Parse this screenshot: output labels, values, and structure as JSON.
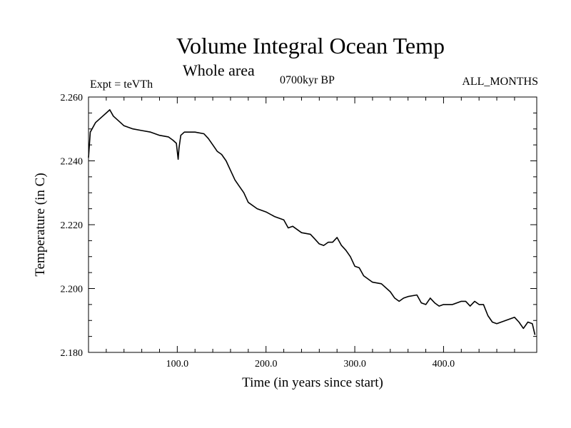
{
  "chart_data": {
    "type": "line",
    "title": "Volume Integral Ocean Temp",
    "subtitle": "Whole area",
    "annotations": {
      "left": "Expt = teVTh",
      "center": "0700kyr BP",
      "right": "ALL_MONTHS"
    },
    "xlabel": "Time (in years since start)",
    "ylabel": "Temperature (in C)",
    "xlim": [
      0,
      505
    ],
    "ylim": [
      2.18,
      2.26
    ],
    "xticks": [
      100,
      200,
      300,
      400
    ],
    "xtick_labels": [
      "100.0",
      "200.0",
      "300.0",
      "400.0"
    ],
    "yticks": [
      2.18,
      2.2,
      2.22,
      2.24,
      2.26
    ],
    "ytick_labels": [
      "2.180",
      "2.200",
      "2.220",
      "2.240",
      "2.260"
    ],
    "grid": false,
    "series": [
      {
        "color": "#000000",
        "x": [
          0,
          2,
          4,
          8,
          12,
          16,
          20,
          24,
          28,
          32,
          36,
          40,
          50,
          60,
          70,
          80,
          90,
          95,
          99,
          101,
          102,
          104,
          108,
          112,
          120,
          130,
          135,
          140,
          145,
          150,
          155,
          160,
          165,
          170,
          175,
          180,
          190,
          200,
          210,
          220,
          225,
          230,
          240,
          250,
          255,
          260,
          265,
          270,
          275,
          280,
          285,
          290,
          295,
          300,
          305,
          310,
          320,
          330,
          340,
          345,
          350,
          355,
          360,
          370,
          375,
          380,
          385,
          390,
          395,
          400,
          410,
          420,
          425,
          430,
          435,
          440,
          445,
          450,
          455,
          460,
          470,
          480,
          485,
          490,
          495,
          500,
          503
        ],
        "y": [
          2.241,
          2.249,
          2.25,
          2.252,
          2.253,
          2.254,
          2.255,
          2.256,
          2.254,
          2.253,
          2.252,
          2.251,
          2.25,
          2.2495,
          2.249,
          2.248,
          2.2475,
          2.2465,
          2.2455,
          2.2405,
          2.244,
          2.248,
          2.249,
          2.249,
          2.249,
          2.2485,
          2.247,
          2.245,
          2.243,
          2.242,
          2.24,
          2.237,
          2.234,
          2.232,
          2.23,
          2.227,
          2.225,
          2.224,
          2.2225,
          2.2215,
          2.219,
          2.2195,
          2.2175,
          2.217,
          2.2155,
          2.214,
          2.2135,
          2.2145,
          2.2145,
          2.216,
          2.2135,
          2.212,
          2.21,
          2.207,
          2.2065,
          2.204,
          2.202,
          2.2015,
          2.199,
          2.197,
          2.196,
          2.197,
          2.1975,
          2.198,
          2.1955,
          2.195,
          2.197,
          2.1955,
          2.1945,
          2.195,
          2.195,
          2.196,
          2.196,
          2.1945,
          2.196,
          2.195,
          2.195,
          2.1915,
          2.1895,
          2.189,
          2.19,
          2.191,
          2.1895,
          2.1875,
          2.1895,
          2.189,
          2.1855
        ]
      }
    ]
  }
}
